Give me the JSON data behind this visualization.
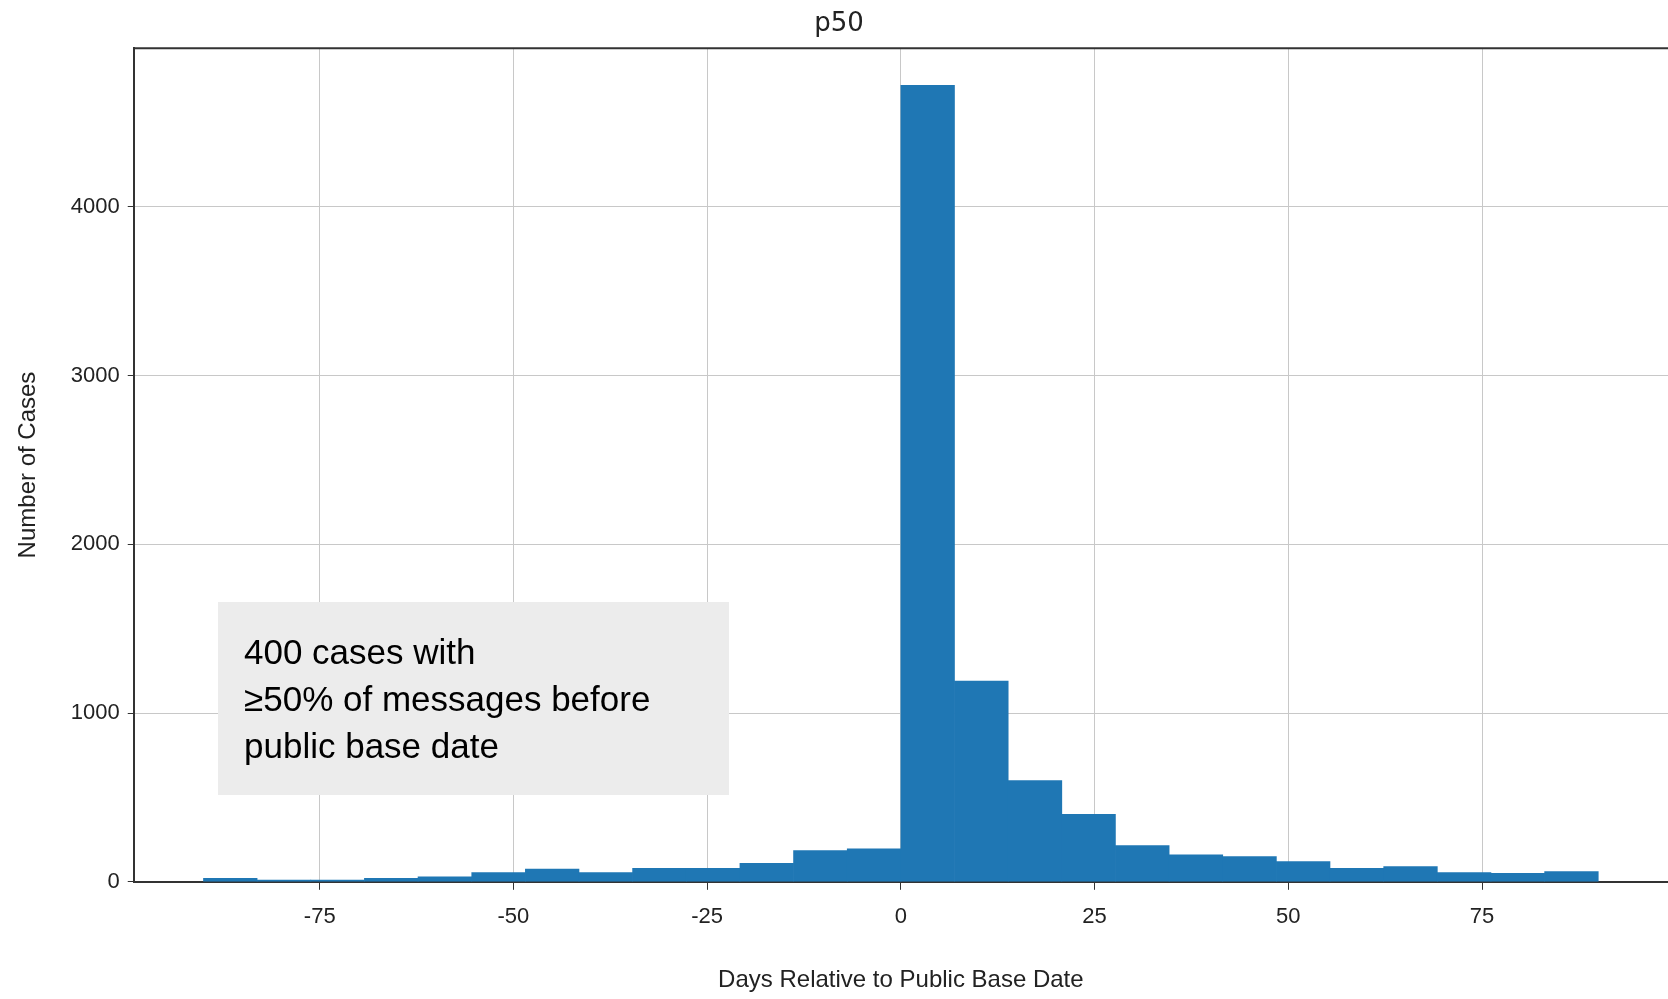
{
  "chart_data": {
    "type": "histogram",
    "title": "p50",
    "xlabel": "Days Relative to Public Base Date",
    "ylabel": "Number of Cases",
    "bins": [
      -90,
      -83.08,
      -76.15,
      -69.23,
      -62.31,
      -55.38,
      -48.46,
      -41.54,
      -34.62,
      -27.69,
      -20.77,
      -13.85,
      -6.92,
      0,
      6.92,
      13.85,
      20.77,
      27.69,
      34.62,
      41.54,
      48.46,
      55.38,
      62.31,
      69.23,
      76.15,
      83.08,
      90
    ],
    "values": [
      20,
      10,
      10,
      20,
      30,
      55,
      75,
      55,
      80,
      80,
      110,
      185,
      195,
      4720,
      1190,
      600,
      400,
      215,
      160,
      150,
      120,
      80,
      90,
      55,
      50,
      60
    ],
    "color": "#1f77b4",
    "xlim": [
      -99,
      99
    ],
    "xticks": [
      -75,
      -50,
      -25,
      0,
      25,
      50,
      75
    ],
    "ylim": [
      0,
      4940
    ],
    "yticks": [
      0,
      1000,
      2000,
      3000,
      4000
    ],
    "grid": true,
    "legend": false,
    "annotations": [
      "400 cases with\n≥50% of messages before\npublic base date"
    ]
  }
}
